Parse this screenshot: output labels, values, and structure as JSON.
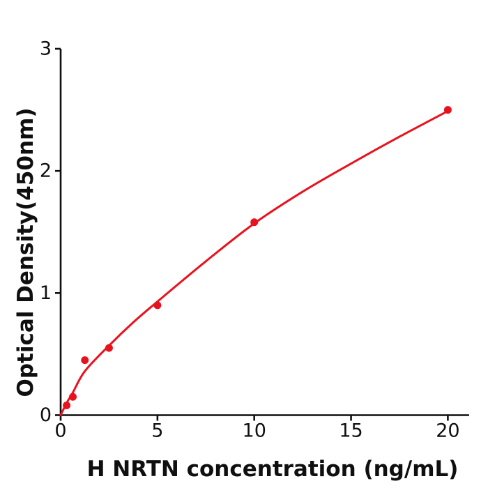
{
  "chart_data": {
    "type": "scatter",
    "title": "",
    "xlabel": "H  NRTN concentration (ng/mL)",
    "ylabel": "Optical Density(450nm)",
    "xlim": [
      0,
      21.1
    ],
    "ylim": [
      0,
      3
    ],
    "x_ticks": [
      "0",
      "5",
      "10",
      "15",
      "20"
    ],
    "x_tick_values": [
      0,
      5,
      10,
      15,
      20
    ],
    "y_ticks": [
      "0",
      "1",
      "2",
      "3"
    ],
    "y_tick_values": [
      0,
      1,
      2,
      3
    ],
    "grid": false,
    "legend_position": "none",
    "colors": {
      "series": "#e8121e",
      "axis": "#0f0f0f",
      "background": "#ffffff"
    },
    "series": [
      {
        "name": "fitted-curve",
        "type": "line",
        "color": "#e8121e",
        "x": [
          0,
          0.31,
          0.63,
          1.25,
          2.5,
          3.75,
          5,
          7.5,
          10,
          12.5,
          15,
          17.5,
          20
        ],
        "y": [
          0,
          0.1,
          0.185,
          0.36,
          0.57,
          0.76,
          0.93,
          1.26,
          1.57,
          1.83,
          2.06,
          2.28,
          2.49
        ]
      },
      {
        "name": "measured-points",
        "type": "scatter",
        "color": "#e8121e",
        "x": [
          0.31,
          0.63,
          1.25,
          2.5,
          5,
          10,
          20
        ],
        "y": [
          0.08,
          0.15,
          0.45,
          0.55,
          0.9,
          1.58,
          2.5
        ]
      }
    ]
  }
}
